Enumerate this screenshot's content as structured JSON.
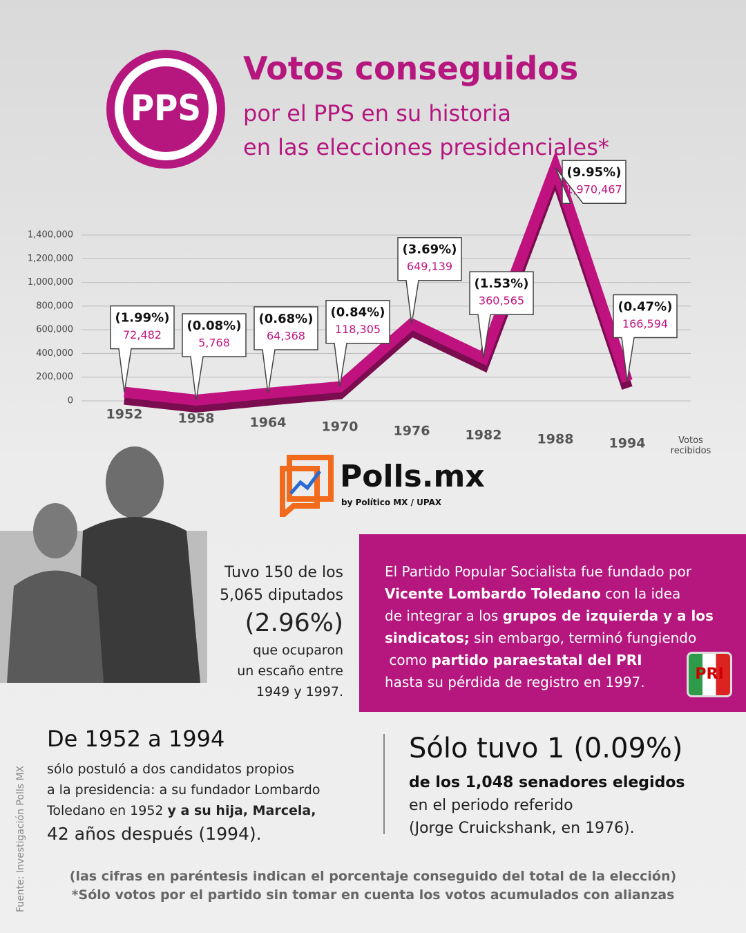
{
  "header": {
    "logo": "PPS",
    "title": "Votos conseguidos",
    "subtitle_lines": [
      "por el PPS en su historia",
      "en las elecciones presidenciales*"
    ]
  },
  "chart_data": {
    "type": "line",
    "y_label": "Votos recibidos",
    "categories": [
      "1952",
      "1958",
      "1964",
      "1970",
      "1976",
      "1982",
      "1988",
      "1994"
    ],
    "values": [
      72482,
      5768,
      64368,
      118305,
      649139,
      360565,
      1970467,
      166594
    ],
    "value_labels": [
      "72,482",
      "5,768",
      "64,368",
      "118,305",
      "649,139",
      "360,565",
      "1,970,467",
      "166,594"
    ],
    "share_labels": [
      "(1.99%)",
      "(0.08%)",
      "(0.68%)",
      "(0.84%)",
      "(3.69%)",
      "(1.53%)",
      "(9.95%)",
      "(0.47%)"
    ],
    "color": "#c0127f",
    "ylim": [
      0,
      1400000
    ],
    "yticks": [
      0,
      {
        "value": 200000,
        "label": "200,000"
      },
      {
        "value": 400000,
        "label": "400,000"
      },
      {
        "value": 600000,
        "label": "600,000"
      },
      {
        "value": 800000,
        "label": "800,000"
      },
      {
        "value": 1000000,
        "label": "1,000,000"
      },
      {
        "value": 1200000,
        "label": "1,200,000"
      },
      {
        "value": 1400000,
        "label": "1,400,000"
      }
    ],
    "grid": true
  },
  "brand": {
    "name": "Polls.mx",
    "tagline": "by Político MX / UPAX"
  },
  "deputies": {
    "lines": [
      "Tuvo 150 de los",
      "5,065 diputados",
      "(2.96%)",
      "que ocuparon",
      "un escaño entre",
      "1949 y 1997."
    ]
  },
  "box": {
    "lines": [
      [
        "El Partido Popular Socialista fue fundado por"
      ],
      [
        "Vicente Lombardo Toledano",
        " con la idea"
      ],
      [
        "de integrar a los ",
        "grupos de izquierda y a los"
      ],
      [
        "sindicatos;",
        " sin embargo, terminó fungiendo"
      ],
      [
        " como ",
        "partido paraestatal del PRI"
      ],
      [
        "hasta su pérdida de registro en 1997."
      ]
    ],
    "logo": "PRI"
  },
  "candidates": {
    "heading": "De 1952 a 1994",
    "lines": [
      [
        "sólo postuló a dos candidatos propios"
      ],
      [
        "a la presidencia: a su fundador Lombardo"
      ],
      [
        "Toledano en 1952 ",
        "y a su hija, Marcela,"
      ],
      [
        "42 años después (1994)."
      ]
    ]
  },
  "senators": {
    "heading": "Sólo tuvo 1 (0.09%)",
    "lines": [
      "de los 1,048 senadores elegidos",
      "en el periodo referido",
      "(Jorge Cruickshank, en 1976)."
    ]
  },
  "footnotes": [
    "(las cifras en paréntesis indican el porcentaje conseguido del total de la elección)",
    "*Sólo votos por el partido sin tomar en cuenta los votos acumulados con alianzas"
  ],
  "source": "Fuente: Investigación Polls MX"
}
